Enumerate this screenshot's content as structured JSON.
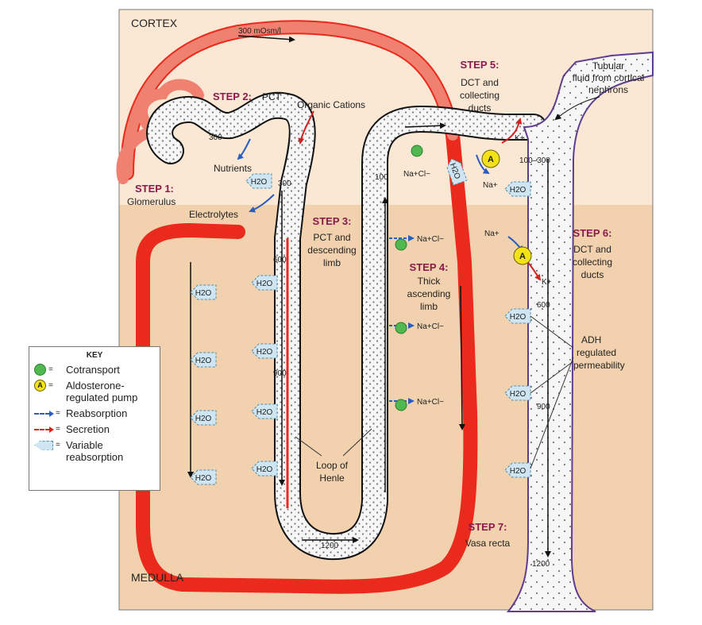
{
  "regions": {
    "cortex": "CORTEX",
    "medulla": "MEDULLA"
  },
  "steps": {
    "step1": {
      "title": "STEP 1:",
      "line1": "Glomerulus"
    },
    "step2": {
      "title": "STEP 2:",
      "line1": "PCT"
    },
    "step3": {
      "title": "STEP 3:",
      "line1": "PCT and",
      "line2": "descending",
      "line3": "limb"
    },
    "step4": {
      "title": "STEP 4:",
      "line1": "Thick",
      "line2": "ascending",
      "line3": "limb"
    },
    "step5": {
      "title": "STEP 5:",
      "line1": "DCT and",
      "line2": "collecting",
      "line3": "ducts"
    },
    "step6": {
      "title": "STEP 6:",
      "line1": "DCT and",
      "line2": "collecting",
      "line3": "ducts"
    },
    "step7": {
      "title": "STEP 7:",
      "line1": "Vasa recta"
    }
  },
  "labels": {
    "osm_300_top": "300 mOsm/l",
    "organic_cations": "Organic Cations",
    "nutrients": "Nutrients",
    "electrolytes": "Electrolytes",
    "tubular_fluid_1": "Tubular",
    "tubular_fluid_2": "fluid from cortical",
    "tubular_fluid_3": "nephrons",
    "adh_1": "ADH",
    "adh_2": "regulated",
    "adh_3": "permeability",
    "loop_1": "Loop of",
    "loop_2": "Henle",
    "water": "H2O",
    "nacl": "Na+Cl−",
    "na": "Na+",
    "k": "K+",
    "pump": "A"
  },
  "osmolarity": {
    "pct_300": "300",
    "desc_300": "300",
    "desc_600": "600",
    "desc_900": "900",
    "bottom_1200": "1200",
    "asc_100": "100",
    "dct_range": "100–300",
    "cd_600": "600",
    "cd_900": "900",
    "cd_1200": "1200"
  },
  "key": {
    "title": "KEY",
    "cotransport": "Cotransport",
    "pump_line1": "Aldosterone-",
    "pump_line2": "regulated pump",
    "reabsorption": "Reabsorption",
    "secretion": "Secretion",
    "variable_line1": "Variable",
    "variable_line2": "reabsorption",
    "equals": "=",
    "pump_letter": "A"
  },
  "colors": {
    "cortex_bg": "#fbe8d4",
    "medulla_bg": "#f2d2ae",
    "vessel": "#ea2a1d",
    "vessel_light": "#f08070",
    "tubule_fill": "#f6f6f6",
    "collecting_outline": "#5e3d8f",
    "cotransport": "#4fb84f",
    "pump": "#f3e21a",
    "reabsorption_arrow": "#2a5dbf",
    "secretion_arrow": "#d22222",
    "water_fill": "#cfe6f2",
    "step_title": "#8a1a4b"
  }
}
